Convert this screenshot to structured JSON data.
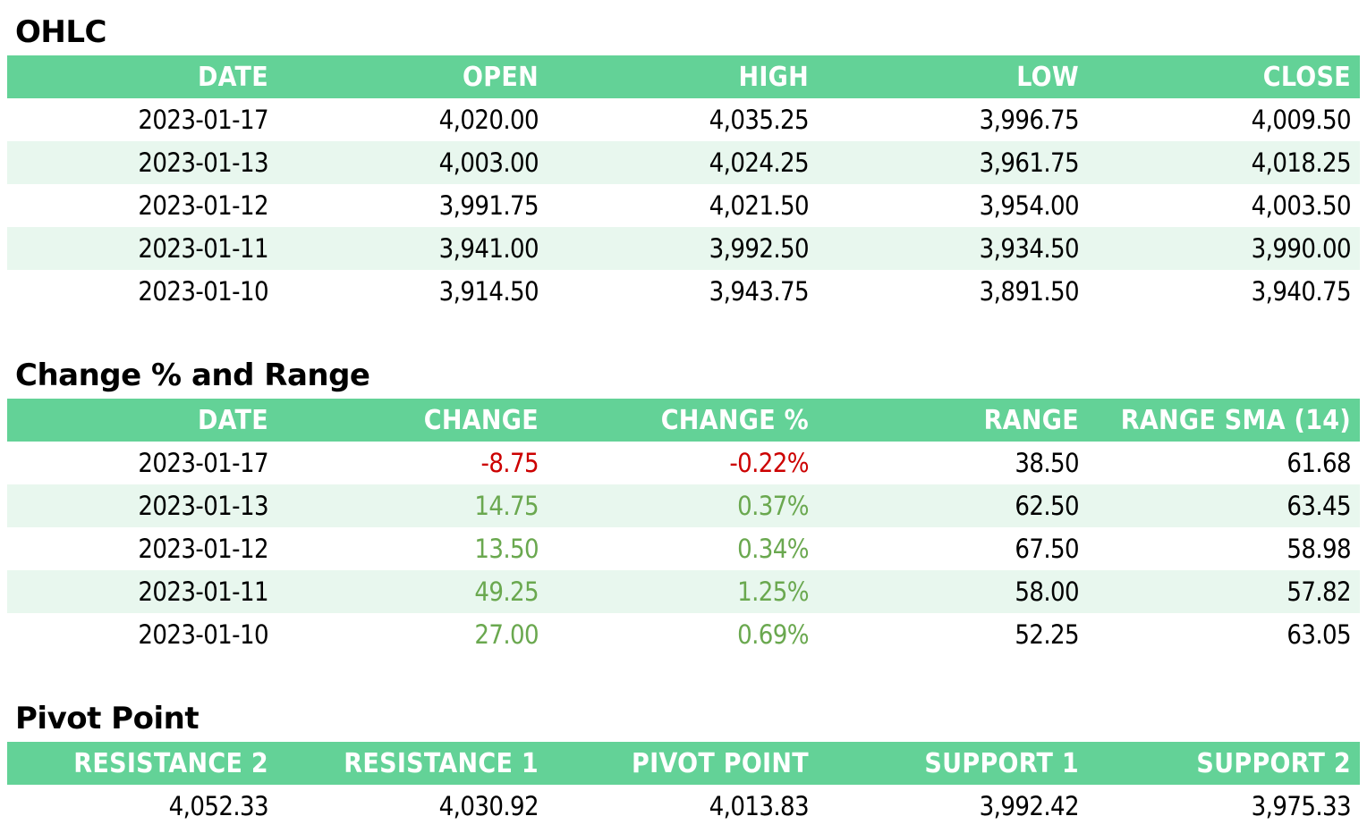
{
  "ohlc": {
    "title": "OHLC",
    "headers": [
      "DATE",
      "OPEN",
      "HIGH",
      "LOW",
      "CLOSE"
    ],
    "rows": [
      [
        "2023-01-17",
        "4,020.00",
        "4,035.25",
        "3,996.75",
        "4,009.50"
      ],
      [
        "2023-01-13",
        "4,003.00",
        "4,024.25",
        "3,961.75",
        "4,018.25"
      ],
      [
        "2023-01-12",
        "3,991.75",
        "4,021.50",
        "3,954.00",
        "4,003.50"
      ],
      [
        "2023-01-11",
        "3,941.00",
        "3,992.50",
        "3,934.50",
        "3,990.00"
      ],
      [
        "2023-01-10",
        "3,914.50",
        "3,943.75",
        "3,891.50",
        "3,940.75"
      ]
    ]
  },
  "change": {
    "title": "Change % and Range",
    "headers": [
      "DATE",
      "CHANGE",
      "CHANGE %",
      "RANGE",
      "RANGE SMA (14)"
    ],
    "rows": [
      [
        "2023-01-17",
        "-8.75",
        "-0.22%",
        "38.50",
        "61.68"
      ],
      [
        "2023-01-13",
        "14.75",
        "0.37%",
        "62.50",
        "63.45"
      ],
      [
        "2023-01-12",
        "13.50",
        "0.34%",
        "67.50",
        "58.98"
      ],
      [
        "2023-01-11",
        "49.25",
        "1.25%",
        "58.00",
        "57.82"
      ],
      [
        "2023-01-10",
        "27.00",
        "0.69%",
        "52.25",
        "63.05"
      ]
    ]
  },
  "pivot": {
    "title": "Pivot Point",
    "headers": [
      "RESISTANCE 2",
      "RESISTANCE 1",
      "PIVOT POINT",
      "SUPPORT 1",
      "SUPPORT 2"
    ],
    "rows": [
      [
        "4,052.33",
        "4,030.92",
        "4,013.83",
        "3,992.42",
        "3,975.33"
      ]
    ]
  },
  "colors": {
    "header_bg": "#63d297",
    "alt_row_bg": "#e8f7ee",
    "negative": "#cc0000",
    "positive": "#6aa84f"
  }
}
